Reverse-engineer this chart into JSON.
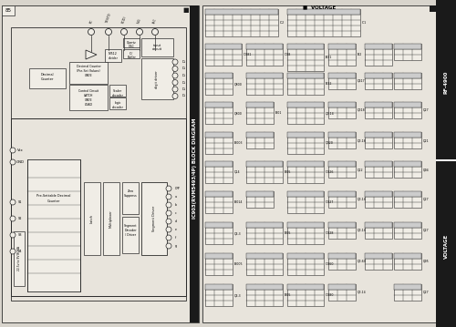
{
  "bg_color": "#d8d4cc",
  "paper_color": "#e8e4dc",
  "line_color": "#2a2a2a",
  "dark_bar_color": "#1a1a1a",
  "white": "#f0ede6",
  "gray_light": "#c8c4bc",
  "page_num": "85",
  "title_block": "IC903(RVM5493/4P) BLOCK DIAGRAM",
  "right_title1": "RF-4900",
  "right_title2": "VOLTAGE"
}
